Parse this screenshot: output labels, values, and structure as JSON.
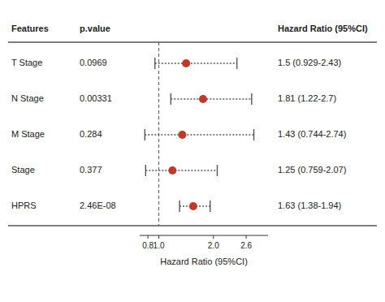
{
  "chart_data": {
    "type": "forest",
    "xlabel": "Hazard Ratio (95%CI)",
    "column_headers": [
      "Features",
      "p.value",
      "Hazard Ratio (95%CI)"
    ],
    "categories": [
      "T Stage",
      "N Stage",
      "M Stage",
      "Stage",
      "HPRS"
    ],
    "pvalues": [
      "0.0969",
      "0.00331",
      "0.284",
      "0.377",
      "2.46E-08"
    ],
    "values": [
      1.5,
      1.81,
      1.43,
      1.25,
      1.63
    ],
    "value_labels": [
      "1.5 (0.929-2.43)",
      "1.81 (1.22-2.7)",
      "1.43 (0.744-2.74)",
      "1.25 (0.759-2.07)",
      "1.63 (1.38-1.94)"
    ],
    "ci_low": [
      0.929,
      1.22,
      0.744,
      0.759,
      1.38
    ],
    "ci_high": [
      2.43,
      2.7,
      2.74,
      2.07,
      1.94
    ],
    "xlim": [
      0.65,
      3.0
    ],
    "xticks": [
      0.8,
      {
        "value": 1.0,
        "label": "1.0"
      },
      {
        "value": 2.0,
        "label": "2.0"
      },
      2.6
    ],
    "reference_line": 1.0,
    "color": "#c0392b",
    "grid": false
  }
}
